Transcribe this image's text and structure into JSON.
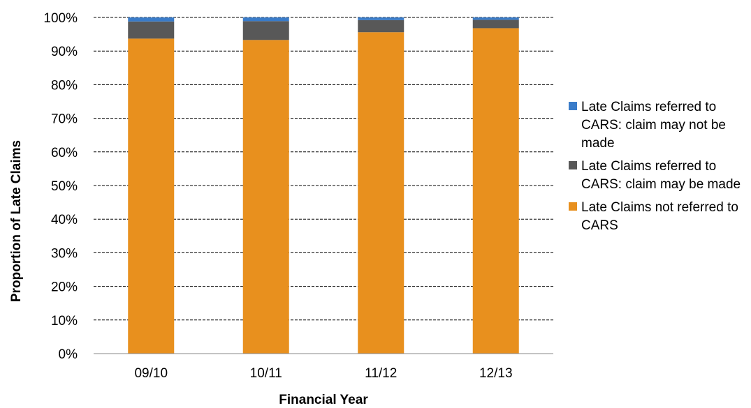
{
  "chart_data": {
    "type": "bar",
    "stacked": true,
    "xlabel": "Financial Year",
    "ylabel": "Proportion of Late Claims",
    "ylim": [
      0,
      100
    ],
    "y_tick_labels": [
      "0%",
      "10%",
      "20%",
      "30%",
      "40%",
      "50%",
      "60%",
      "70%",
      "80%",
      "90%",
      "100%"
    ],
    "grid": true,
    "legend_position": "right",
    "categories": [
      "09/10",
      "10/11",
      "11/12",
      "12/13"
    ],
    "series": [
      {
        "name": "Late Claims not referred to CARS",
        "values": [
          93.7,
          93.3,
          95.6,
          96.8
        ],
        "color": "#E8901E"
      },
      {
        "name": "Late Claims referred to CARS: claim may be made",
        "values": [
          5.1,
          5.6,
          3.6,
          2.5
        ],
        "color": "#585858"
      },
      {
        "name": "Late Claims referred to CARS: claim may not be made",
        "values": [
          1.2,
          1.1,
          0.8,
          0.7
        ],
        "color": "#3A7CC9"
      }
    ]
  }
}
